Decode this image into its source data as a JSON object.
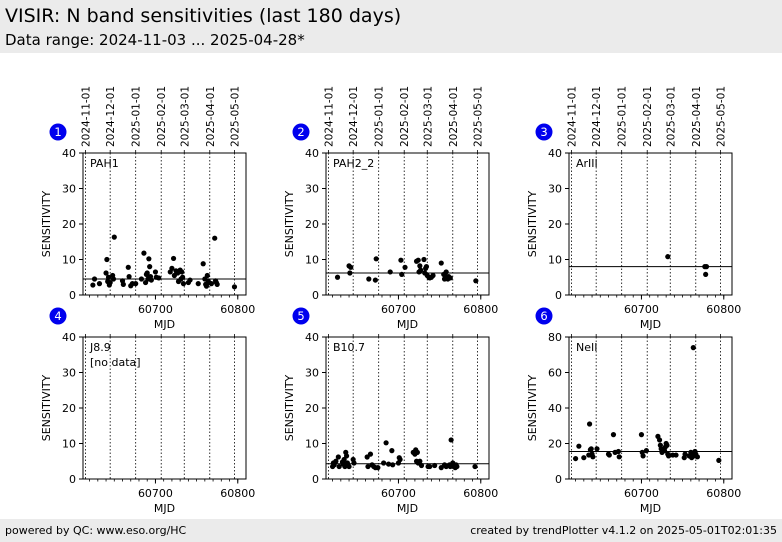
{
  "header": {
    "title": "VISIR: N band sensitivities (last 180 days)",
    "subtitle": "Data range: 2024-11-03 ... 2025-04-28*"
  },
  "footer": {
    "left": "powered by QC: www.eso.org/HC",
    "right": "created by trendPlotter v4.1.2 on 2025-05-01T02:01:35"
  },
  "colors": {
    "badge": "#0000ee",
    "header_bg": "#ebebeb",
    "points": "#000000"
  },
  "chart_data": [
    {
      "type": "scatter",
      "panel_number": "1",
      "label": "PAH1",
      "nodata": "",
      "xlabel": "MJD",
      "ylabel": "SENSITIVITY",
      "xlim": [
        60612,
        60810
      ],
      "ylim": [
        0,
        40
      ],
      "yticks": [
        0,
        10,
        20,
        30,
        40
      ],
      "xticks": [
        60700,
        60800
      ],
      "date_ticks": [
        {
          "mjd": 60615,
          "label": "2024-11-01"
        },
        {
          "mjd": 60645,
          "label": "2024-12-01"
        },
        {
          "mjd": 60676,
          "label": "2025-01-01"
        },
        {
          "mjd": 60707,
          "label": "2025-02-01"
        },
        {
          "mjd": 60735,
          "label": "2025-03-01"
        },
        {
          "mjd": 60766,
          "label": "2025-04-01"
        },
        {
          "mjd": 60796,
          "label": "2025-05-01"
        }
      ],
      "reference_line": 4.5,
      "points": [
        [
          60624,
          2.8
        ],
        [
          60626,
          4.5
        ],
        [
          60632,
          3.2
        ],
        [
          60640,
          6.2
        ],
        [
          60641,
          10.0
        ],
        [
          60642,
          3.8
        ],
        [
          60643,
          5.0
        ],
        [
          60644,
          2.8
        ],
        [
          60645,
          3.5
        ],
        [
          60648,
          5.5
        ],
        [
          60649,
          4.5
        ],
        [
          60650,
          16.3
        ],
        [
          60660,
          4.0
        ],
        [
          60661,
          3.0
        ],
        [
          60667,
          7.8
        ],
        [
          60668,
          5.2
        ],
        [
          60670,
          2.6
        ],
        [
          60672,
          3.2
        ],
        [
          60676,
          3.2
        ],
        [
          60683,
          4.5
        ],
        [
          60686,
          11.8
        ],
        [
          60688,
          3.5
        ],
        [
          60689,
          5.8
        ],
        [
          60690,
          6.2
        ],
        [
          60691,
          4.5
        ],
        [
          60692,
          10.2
        ],
        [
          60693,
          8.0
        ],
        [
          60694,
          5.2
        ],
        [
          60695,
          4.2
        ],
        [
          60700,
          6.5
        ],
        [
          60701,
          5.0
        ],
        [
          60704,
          4.8
        ],
        [
          60718,
          6.5
        ],
        [
          60720,
          7.5
        ],
        [
          60722,
          10.3
        ],
        [
          60723,
          5.5
        ],
        [
          60725,
          6.8
        ],
        [
          60727,
          6.2
        ],
        [
          60728,
          3.8
        ],
        [
          60730,
          7.0
        ],
        [
          60731,
          4.5
        ],
        [
          60732,
          6.5
        ],
        [
          60733,
          5.0
        ],
        [
          60734,
          3.2
        ],
        [
          60740,
          3.5
        ],
        [
          60742,
          4.2
        ],
        [
          60752,
          3.2
        ],
        [
          60758,
          8.8
        ],
        [
          60760,
          4.5
        ],
        [
          60761,
          3.0
        ],
        [
          60762,
          2.5
        ],
        [
          60763,
          5.5
        ],
        [
          60764,
          4.0
        ],
        [
          60765,
          3.5
        ],
        [
          60768,
          3.2
        ],
        [
          60772,
          16.0
        ],
        [
          60773,
          4.0
        ],
        [
          60774,
          3.5
        ],
        [
          60775,
          3.0
        ],
        [
          60796,
          2.3
        ]
      ]
    },
    {
      "type": "scatter",
      "panel_number": "2",
      "label": "PAH2_2",
      "nodata": "",
      "xlabel": "MJD",
      "ylabel": "SENSITIVITY",
      "xlim": [
        60612,
        60810
      ],
      "ylim": [
        0,
        40
      ],
      "yticks": [
        0,
        10,
        20,
        30,
        40
      ],
      "xticks": [
        60700,
        60800
      ],
      "date_ticks": [
        {
          "mjd": 60615,
          "label": "2024-11-01"
        },
        {
          "mjd": 60645,
          "label": "2024-12-01"
        },
        {
          "mjd": 60676,
          "label": "2025-01-01"
        },
        {
          "mjd": 60707,
          "label": "2025-02-01"
        },
        {
          "mjd": 60735,
          "label": "2025-03-01"
        },
        {
          "mjd": 60766,
          "label": "2025-04-01"
        },
        {
          "mjd": 60796,
          "label": "2025-05-01"
        }
      ],
      "reference_line": 6.2,
      "points": [
        [
          60626,
          5.0
        ],
        [
          60640,
          8.2
        ],
        [
          60641,
          6.2
        ],
        [
          60642,
          7.8
        ],
        [
          60664,
          4.5
        ],
        [
          60672,
          4.2
        ],
        [
          60673,
          10.2
        ],
        [
          60690,
          6.5
        ],
        [
          60703,
          9.8
        ],
        [
          60704,
          5.8
        ],
        [
          60708,
          7.8
        ],
        [
          60722,
          9.5
        ],
        [
          60724,
          9.8
        ],
        [
          60725,
          6.5
        ],
        [
          60726,
          8.2
        ],
        [
          60727,
          7.0
        ],
        [
          60731,
          10.0
        ],
        [
          60732,
          6.2
        ],
        [
          60733,
          7.5
        ],
        [
          60734,
          8.0
        ],
        [
          60735,
          5.5
        ],
        [
          60737,
          5.0
        ],
        [
          60738,
          4.8
        ],
        [
          60740,
          5.0
        ],
        [
          60742,
          5.5
        ],
        [
          60752,
          9.0
        ],
        [
          60755,
          5.8
        ],
        [
          60756,
          4.5
        ],
        [
          60757,
          5.5
        ],
        [
          60758,
          6.5
        ],
        [
          60759,
          5.0
        ],
        [
          60760,
          4.5
        ],
        [
          60761,
          5.2
        ],
        [
          60763,
          4.8
        ],
        [
          60794,
          4.0
        ]
      ]
    },
    {
      "type": "scatter",
      "panel_number": "3",
      "label": "ArIII",
      "nodata": "",
      "xlabel": "MJD",
      "ylabel": "SENSITIVITY",
      "xlim": [
        60612,
        60810
      ],
      "ylim": [
        0,
        40
      ],
      "yticks": [
        0,
        10,
        20,
        30,
        40
      ],
      "xticks": [
        60700,
        60800
      ],
      "date_ticks": [
        {
          "mjd": 60615,
          "label": "2024-11-01"
        },
        {
          "mjd": 60645,
          "label": "2024-12-01"
        },
        {
          "mjd": 60676,
          "label": "2025-01-01"
        },
        {
          "mjd": 60707,
          "label": "2025-02-01"
        },
        {
          "mjd": 60735,
          "label": "2025-03-01"
        },
        {
          "mjd": 60766,
          "label": "2025-04-01"
        },
        {
          "mjd": 60796,
          "label": "2025-05-01"
        }
      ],
      "reference_line": 8.0,
      "points": [
        [
          60732,
          10.8
        ],
        [
          60777,
          8.0
        ],
        [
          60778,
          5.8
        ],
        [
          60779,
          8.0
        ]
      ]
    },
    {
      "type": "scatter",
      "panel_number": "4",
      "label": "J8.9",
      "nodata": "[no data]",
      "xlabel": "MJD",
      "ylabel": "SENSITIVITY",
      "xlim": [
        60612,
        60810
      ],
      "ylim": [
        0,
        40
      ],
      "yticks": [
        0,
        10,
        20,
        30,
        40
      ],
      "xticks": [
        60700,
        60800
      ],
      "date_ticks": [
        {
          "mjd": 60615,
          "label": ""
        },
        {
          "mjd": 60645,
          "label": ""
        },
        {
          "mjd": 60676,
          "label": ""
        },
        {
          "mjd": 60707,
          "label": ""
        },
        {
          "mjd": 60735,
          "label": ""
        },
        {
          "mjd": 60766,
          "label": ""
        },
        {
          "mjd": 60796,
          "label": ""
        }
      ],
      "reference_line": null,
      "points": []
    },
    {
      "type": "scatter",
      "panel_number": "5",
      "label": "B10.7",
      "nodata": "",
      "xlabel": "MJD",
      "ylabel": "SENSITIVITY",
      "xlim": [
        60612,
        60810
      ],
      "ylim": [
        0,
        40
      ],
      "yticks": [
        0,
        10,
        20,
        30,
        40
      ],
      "xticks": [
        60700,
        60800
      ],
      "date_ticks": [
        {
          "mjd": 60615,
          "label": ""
        },
        {
          "mjd": 60645,
          "label": ""
        },
        {
          "mjd": 60676,
          "label": ""
        },
        {
          "mjd": 60707,
          "label": ""
        },
        {
          "mjd": 60735,
          "label": ""
        },
        {
          "mjd": 60766,
          "label": ""
        },
        {
          "mjd": 60796,
          "label": ""
        }
      ],
      "reference_line": 4.3,
      "points": [
        [
          60620,
          3.5
        ],
        [
          60621,
          4.5
        ],
        [
          60622,
          4.0
        ],
        [
          60624,
          5.0
        ],
        [
          60627,
          6.2
        ],
        [
          60628,
          3.5
        ],
        [
          60632,
          4.8
        ],
        [
          60633,
          4.2
        ],
        [
          60634,
          5.5
        ],
        [
          60635,
          3.5
        ],
        [
          60636,
          7.5
        ],
        [
          60637,
          6.5
        ],
        [
          60638,
          4.5
        ],
        [
          60639,
          3.8
        ],
        [
          60640,
          3.5
        ],
        [
          60645,
          5.5
        ],
        [
          60646,
          4.5
        ],
        [
          60662,
          6.2
        ],
        [
          60663,
          3.5
        ],
        [
          60666,
          7.0
        ],
        [
          60668,
          4.0
        ],
        [
          60670,
          3.5
        ],
        [
          60672,
          3.2
        ],
        [
          60675,
          3.2
        ],
        [
          60682,
          4.5
        ],
        [
          60685,
          10.2
        ],
        [
          60688,
          4.2
        ],
        [
          60692,
          8.0
        ],
        [
          60693,
          4.0
        ],
        [
          60700,
          4.5
        ],
        [
          60701,
          6.0
        ],
        [
          60702,
          5.5
        ],
        [
          60718,
          7.5
        ],
        [
          60720,
          7.0
        ],
        [
          60721,
          8.2
        ],
        [
          60722,
          5.0
        ],
        [
          60723,
          7.5
        ],
        [
          60724,
          4.5
        ],
        [
          60726,
          5.0
        ],
        [
          60728,
          3.8
        ],
        [
          60736,
          3.5
        ],
        [
          60738,
          3.5
        ],
        [
          60744,
          3.8
        ],
        [
          60752,
          3.2
        ],
        [
          60756,
          4.0
        ],
        [
          60758,
          3.5
        ],
        [
          60762,
          4.0
        ],
        [
          60763,
          3.5
        ],
        [
          60764,
          11.0
        ],
        [
          60765,
          3.8
        ],
        [
          60766,
          4.5
        ],
        [
          60767,
          3.5
        ],
        [
          60768,
          3.8
        ],
        [
          60769,
          3.2
        ],
        [
          60770,
          4.0
        ],
        [
          60771,
          3.5
        ],
        [
          60793,
          3.5
        ]
      ]
    },
    {
      "type": "scatter",
      "panel_number": "6",
      "label": "NeII",
      "nodata": "",
      "xlabel": "MJD",
      "ylabel": "SENSITIVITY",
      "xlim": [
        60612,
        60810
      ],
      "ylim": [
        0,
        80
      ],
      "yticks": [
        0,
        20,
        40,
        60,
        80
      ],
      "xticks": [
        60700,
        60800
      ],
      "date_ticks": [
        {
          "mjd": 60615,
          "label": ""
        },
        {
          "mjd": 60645,
          "label": ""
        },
        {
          "mjd": 60676,
          "label": ""
        },
        {
          "mjd": 60707,
          "label": ""
        },
        {
          "mjd": 60735,
          "label": ""
        },
        {
          "mjd": 60766,
          "label": ""
        },
        {
          "mjd": 60796,
          "label": ""
        }
      ],
      "reference_line": 15.5,
      "points": [
        [
          60620,
          11.5
        ],
        [
          60624,
          18.5
        ],
        [
          60630,
          12.0
        ],
        [
          60636,
          13.5
        ],
        [
          60637,
          31.0
        ],
        [
          60638,
          16.5
        ],
        [
          60639,
          17.0
        ],
        [
          60640,
          14.0
        ],
        [
          60641,
          12.5
        ],
        [
          60646,
          17.0
        ],
        [
          60660,
          14.0
        ],
        [
          60661,
          13.5
        ],
        [
          60666,
          25.0
        ],
        [
          60668,
          15.0
        ],
        [
          60672,
          15.5
        ],
        [
          60673,
          12.5
        ],
        [
          60700,
          25.0
        ],
        [
          60701,
          15.0
        ],
        [
          60702,
          13.0
        ],
        [
          60706,
          16.0
        ],
        [
          60720,
          24.0
        ],
        [
          60722,
          22.0
        ],
        [
          60723,
          19.0
        ],
        [
          60724,
          17.0
        ],
        [
          60725,
          15.0
        ],
        [
          60728,
          16.0
        ],
        [
          60729,
          18.0
        ],
        [
          60730,
          20.0
        ],
        [
          60731,
          19.0
        ],
        [
          60732,
          14.0
        ],
        [
          60733,
          13.0
        ],
        [
          60738,
          13.5
        ],
        [
          60742,
          13.5
        ],
        [
          60752,
          12.0
        ],
        [
          60753,
          14.0
        ],
        [
          60758,
          13.0
        ],
        [
          60760,
          15.0
        ],
        [
          60761,
          12.0
        ],
        [
          60762,
          14.0
        ],
        [
          60763,
          74.0
        ],
        [
          60764,
          13.0
        ],
        [
          60765,
          15.5
        ],
        [
          60766,
          14.0
        ],
        [
          60768,
          12.5
        ],
        [
          60794,
          10.5
        ]
      ]
    }
  ]
}
